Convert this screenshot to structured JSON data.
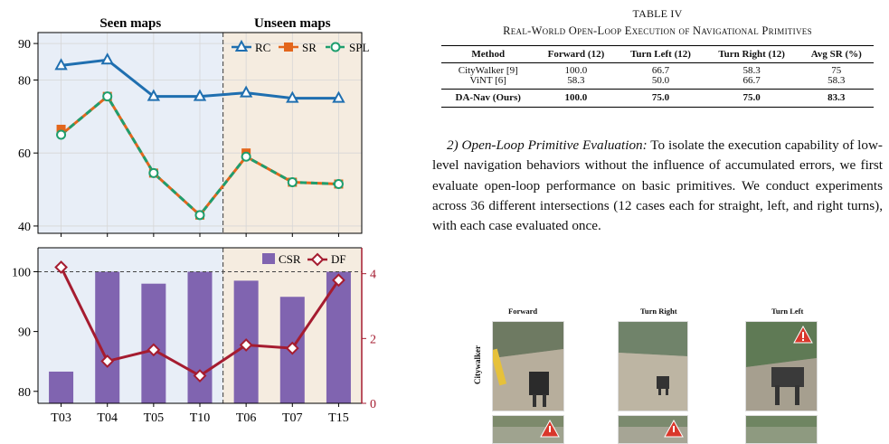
{
  "chart_data": [
    {
      "type": "line",
      "categories": [
        "T03",
        "T04",
        "T05",
        "T10",
        "T06",
        "T07",
        "T15"
      ],
      "regions": [
        {
          "label": "Seen maps",
          "categories": [
            "T03",
            "T04",
            "T05",
            "T10"
          ],
          "color": "#e8eef7"
        },
        {
          "label": "Unseen maps",
          "categories": [
            "T06",
            "T07",
            "T15"
          ],
          "color": "#f5ece0"
        }
      ],
      "yticks": [
        40,
        60,
        80,
        90
      ],
      "ylim": [
        38,
        93
      ],
      "grid": true,
      "legend_position": "top-right",
      "series": [
        {
          "name": "RC",
          "values": [
            84.0,
            85.5,
            75.5,
            75.5,
            76.5,
            75.0,
            75.0
          ],
          "color": "#1f6fb0",
          "marker": "triangle",
          "dash": false
        },
        {
          "name": "SR",
          "values": [
            66.5,
            75.5,
            54.5,
            43.0,
            60.0,
            52.0,
            51.5
          ],
          "color": "#e3661c",
          "marker": "square",
          "dash": false
        },
        {
          "name": "SPL",
          "values": [
            65.0,
            75.5,
            54.5,
            43.0,
            59.0,
            52.0,
            51.5
          ],
          "color": "#1e9e6e",
          "marker": "circle",
          "dash": true
        }
      ]
    },
    {
      "type": "bar",
      "categories": [
        "T03",
        "T04",
        "T05",
        "T10",
        "T06",
        "T07",
        "T15"
      ],
      "left_axis": {
        "yticks": [
          80,
          90,
          100
        ],
        "ylim": [
          78,
          104
        ],
        "reference_line": 100
      },
      "right_axis": {
        "yticks": [
          0,
          2,
          4
        ],
        "ylim": [
          0,
          4.8
        ],
        "color": "#a51c30"
      },
      "legend_position": "top-right",
      "series": [
        {
          "name": "CSR",
          "type": "bar",
          "axis": "left",
          "values": [
            83.3,
            100.0,
            98.0,
            100.0,
            98.5,
            95.8,
            100.0
          ],
          "color": "#8064b0"
        },
        {
          "name": "DF",
          "type": "line",
          "axis": "right",
          "values": [
            4.2,
            1.3,
            1.65,
            0.85,
            1.8,
            1.7,
            3.8
          ],
          "color": "#a51c30",
          "marker": "diamond"
        }
      ]
    }
  ],
  "table": {
    "caption": "TABLE IV",
    "title": "Real-World Open-Loop Execution of Navigational Primitives",
    "headers": [
      "Method",
      "Forward (12)",
      "Turn Left (12)",
      "Turn Right (12)",
      "Avg SR (%)"
    ],
    "rows": [
      [
        "CityWalker [9]",
        "100.0",
        "66.7",
        "58.3",
        "75"
      ],
      [
        "ViNT [6]",
        "58.3",
        "50.0",
        "66.7",
        "58.3"
      ]
    ],
    "ours": [
      "DA-Nav (Ours)",
      "100.0",
      "75.0",
      "75.0",
      "83.3"
    ]
  },
  "paragraph": {
    "heading": "2) Open-Loop Primitive Evaluation:",
    "body": "To isolate the execution capability of low-level navigation behaviors without the influence of accumulated errors, we first evaluate open-loop performance on basic primitives. We conduct experiments across 36 different intersections (12 cases each for straight, left, and right turns), with each case evaluated once."
  },
  "figure": {
    "columns": [
      "Forward",
      "Turn Right",
      "Turn Left"
    ],
    "row_label": "Citywalker",
    "warning_icon": "warning-triangle-icon"
  }
}
